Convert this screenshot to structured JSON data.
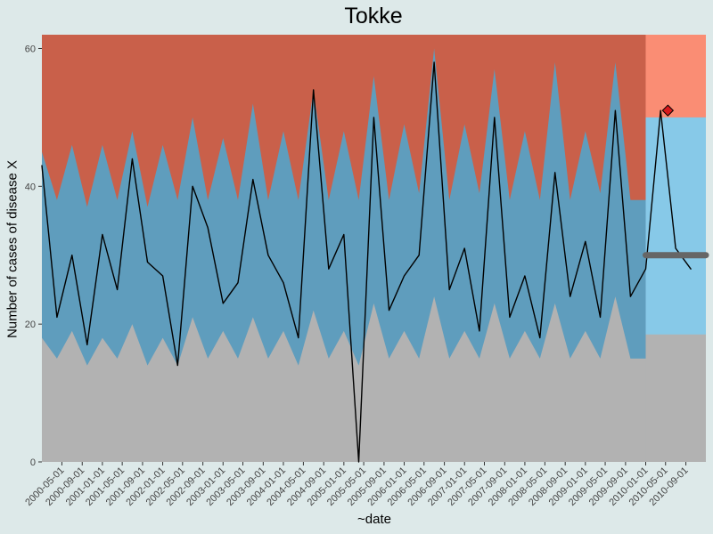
{
  "chart_data": {
    "type": "area",
    "title": "Tokke",
    "xlabel": "~date",
    "ylabel": "Number of cases of disease X",
    "ylim": [
      0,
      62
    ],
    "y_ticks": [
      0,
      20,
      40,
      60
    ],
    "grid": false,
    "legend": "none",
    "x_tick_labels": [
      "2000-05-01",
      "2000-09-01",
      "2001-01-01",
      "2001-05-01",
      "2001-09-01",
      "2002-01-01",
      "2002-05-01",
      "2002-09-01",
      "2003-01-01",
      "2003-05-01",
      "2003-09-01",
      "2004-01-01",
      "2004-05-01",
      "2004-09-01",
      "2005-01-01",
      "2005-05-01",
      "2005-09-01",
      "2006-01-01",
      "2006-05-01",
      "2006-09-01",
      "2007-01-01",
      "2007-05-01",
      "2007-09-01",
      "2008-01-01",
      "2008-05-01",
      "2008-09-01",
      "2009-01-01",
      "2009-05-01",
      "2009-09-01",
      "2010-01-01",
      "2010-05-01",
      "2010-09-01"
    ],
    "x_range": [
      "2000-01-01",
      "2010-12-31"
    ],
    "forecast_start": "2010-01-01",
    "series": [
      {
        "role": "observed",
        "color": "#000000",
        "x": [
          "2000-01-01",
          "2000-04-01",
          "2000-07-01",
          "2000-10-01",
          "2001-01-01",
          "2001-04-01",
          "2001-07-01",
          "2001-10-01",
          "2002-01-01",
          "2002-04-01",
          "2002-07-01",
          "2002-10-01",
          "2003-01-01",
          "2003-04-01",
          "2003-07-01",
          "2003-10-01",
          "2004-01-01",
          "2004-04-01",
          "2004-07-01",
          "2004-10-01",
          "2005-01-01",
          "2005-04-01",
          "2005-07-01",
          "2005-10-01",
          "2006-01-01",
          "2006-04-01",
          "2006-07-01",
          "2006-10-01",
          "2007-01-01",
          "2007-04-01",
          "2007-07-01",
          "2007-10-01",
          "2008-01-01",
          "2008-04-01",
          "2008-07-01",
          "2008-10-01",
          "2009-01-01",
          "2009-04-01",
          "2009-07-01",
          "2009-10-01",
          "2010-01-01",
          "2010-04-01",
          "2010-07-01",
          "2010-10-01"
        ],
        "values": [
          43,
          21,
          30,
          17,
          33,
          25,
          44,
          29,
          27,
          14,
          40,
          34,
          23,
          26,
          41,
          30,
          26,
          18,
          54,
          28,
          33,
          0,
          50,
          22,
          27,
          30,
          58,
          25,
          31,
          19,
          50,
          21,
          27,
          18,
          42,
          24,
          32,
          21,
          51,
          24,
          28,
          51,
          31,
          28
        ]
      },
      {
        "role": "baseline-expected",
        "color": "#666666",
        "x": [
          "2010-01-01",
          "2010-12-31"
        ],
        "values": [
          30,
          30
        ]
      }
    ],
    "threshold_bands": {
      "low": {
        "color": "#b2b2b2",
        "x": [
          "2000-01-01",
          "2000-04-01",
          "2000-07-01",
          "2000-10-01",
          "2001-01-01",
          "2001-04-01",
          "2001-07-01",
          "2001-10-01",
          "2002-01-01",
          "2002-04-01",
          "2002-07-01",
          "2002-10-01",
          "2003-01-01",
          "2003-04-01",
          "2003-07-01",
          "2003-10-01",
          "2004-01-01",
          "2004-04-01",
          "2004-07-01",
          "2004-10-01",
          "2005-01-01",
          "2005-04-01",
          "2005-07-01",
          "2005-10-01",
          "2006-01-01",
          "2006-04-01",
          "2006-07-01",
          "2006-10-01",
          "2007-01-01",
          "2007-04-01",
          "2007-07-01",
          "2007-10-01",
          "2008-01-01",
          "2008-04-01",
          "2008-07-01",
          "2008-10-01",
          "2009-01-01",
          "2009-04-01",
          "2009-07-01",
          "2009-10-01"
        ],
        "values": [
          18,
          15,
          19,
          14,
          18,
          15,
          20,
          14,
          18,
          14,
          21,
          15,
          19,
          15,
          21,
          15,
          19,
          14,
          22,
          15,
          19,
          14,
          23,
          15,
          19,
          15,
          24,
          15,
          19,
          15,
          23,
          15,
          19,
          15,
          23,
          15,
          19,
          15,
          24,
          15
        ]
      },
      "normal": {
        "color": "#5f9dbd",
        "x": [
          "2000-01-01",
          "2000-04-01",
          "2000-07-01",
          "2000-10-01",
          "2001-01-01",
          "2001-04-01",
          "2001-07-01",
          "2001-10-01",
          "2002-01-01",
          "2002-04-01",
          "2002-07-01",
          "2002-10-01",
          "2003-01-01",
          "2003-04-01",
          "2003-07-01",
          "2003-10-01",
          "2004-01-01",
          "2004-04-01",
          "2004-07-01",
          "2004-10-01",
          "2005-01-01",
          "2005-04-01",
          "2005-07-01",
          "2005-10-01",
          "2006-01-01",
          "2006-04-01",
          "2006-07-01",
          "2006-10-01",
          "2007-01-01",
          "2007-04-01",
          "2007-07-01",
          "2007-10-01",
          "2008-01-01",
          "2008-04-01",
          "2008-07-01",
          "2008-10-01",
          "2009-01-01",
          "2009-04-01",
          "2009-07-01",
          "2009-10-01"
        ],
        "values": [
          45,
          38,
          46,
          37,
          46,
          38,
          48,
          37,
          46,
          38,
          50,
          38,
          47,
          38,
          52,
          38,
          48,
          38,
          54,
          38,
          48,
          38,
          56,
          38,
          49,
          39,
          60,
          38,
          49,
          39,
          57,
          38,
          48,
          38,
          58,
          38,
          48,
          39,
          58,
          38
        ]
      },
      "high": {
        "color": "#c9604a"
      },
      "forecast_low": {
        "color": "#b2b2b2",
        "value": 18.5
      },
      "forecast_normal": {
        "color": "#87c9e8",
        "value": 50
      },
      "forecast_high": {
        "color": "#fa8d74"
      }
    },
    "alert_points": [
      {
        "x": "2010-05-15",
        "y": 51,
        "color": "#d7191c"
      }
    ]
  }
}
